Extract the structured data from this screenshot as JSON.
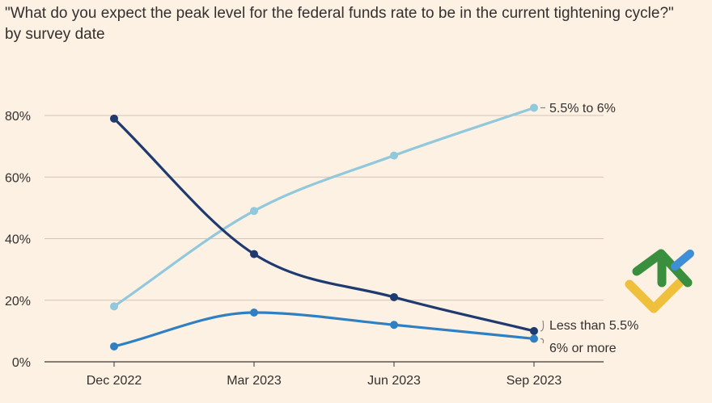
{
  "chart_data": {
    "type": "line",
    "title": "\"What do you expect the peak level for the federal funds rate to be in the current tightening cycle?\"",
    "subtitle": "by survey date",
    "categories": [
      "Dec 2022",
      "Mar 2023",
      "Jun 2023",
      "Sep 2023"
    ],
    "ylim": [
      0,
      80
    ],
    "yticks": [
      "0%",
      "20%",
      "40%",
      "60%",
      "80%"
    ],
    "ytick_values": [
      0,
      20,
      40,
      60,
      80
    ],
    "grid": true,
    "series": [
      {
        "name": "5.5% to 6%",
        "color": "#92c8dc",
        "values": [
          18,
          49,
          67,
          82.5
        ]
      },
      {
        "name": "Less than 5.5%",
        "color": "#1e3a6e",
        "values": [
          79,
          35,
          21,
          10
        ]
      },
      {
        "name": "6% or more",
        "color": "#2f80c2",
        "values": [
          5,
          16,
          12,
          7.5
        ]
      }
    ]
  }
}
